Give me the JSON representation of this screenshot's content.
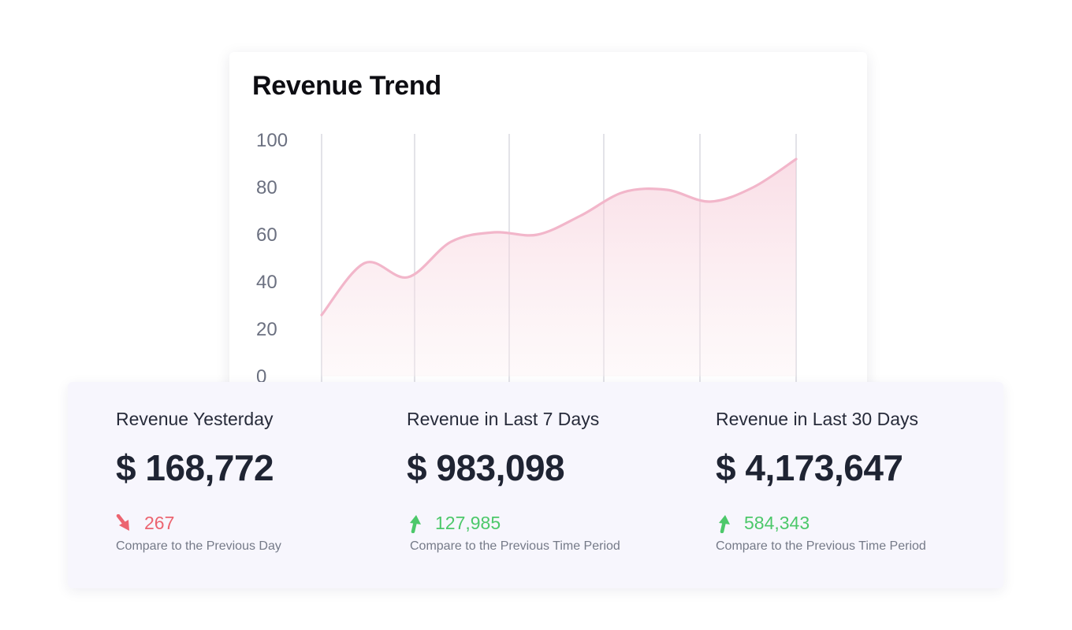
{
  "chart_data": {
    "type": "area",
    "title": "Revenue Trend",
    "x": [
      0,
      1,
      2,
      3,
      4,
      5,
      6,
      7,
      8,
      9,
      10,
      11
    ],
    "values": [
      26,
      48,
      42,
      57,
      61,
      60,
      68,
      78,
      79,
      74,
      80,
      92
    ],
    "ylim": [
      0,
      100
    ],
    "yticks": [
      "100",
      "80",
      "60",
      "40",
      "20",
      "0"
    ],
    "grid": "vertical",
    "colors": {
      "line": "#f2b6ca",
      "fill": "#f9dbe5"
    }
  },
  "stats": [
    {
      "label": "Revenue Yesterday",
      "value": "$ 168,772",
      "change": "267",
      "direction": "down",
      "icon": "arrow-down-right-icon",
      "note": "Compare to the Previous Day"
    },
    {
      "label": "Revenue in Last 7 Days",
      "value": "$ 983,098",
      "change": "127,985",
      "direction": "up",
      "icon": "arrow-up-icon",
      "note": "Compare to the Previous Time Period"
    },
    {
      "label": "Revenue in Last 30 Days",
      "value": "$ 4,173,647",
      "change": "584,343",
      "direction": "up",
      "icon": "arrow-up-icon",
      "note": "Compare to the Previous Time Period"
    }
  ],
  "colors": {
    "down": "#ec6470",
    "up": "#4cc86a"
  }
}
